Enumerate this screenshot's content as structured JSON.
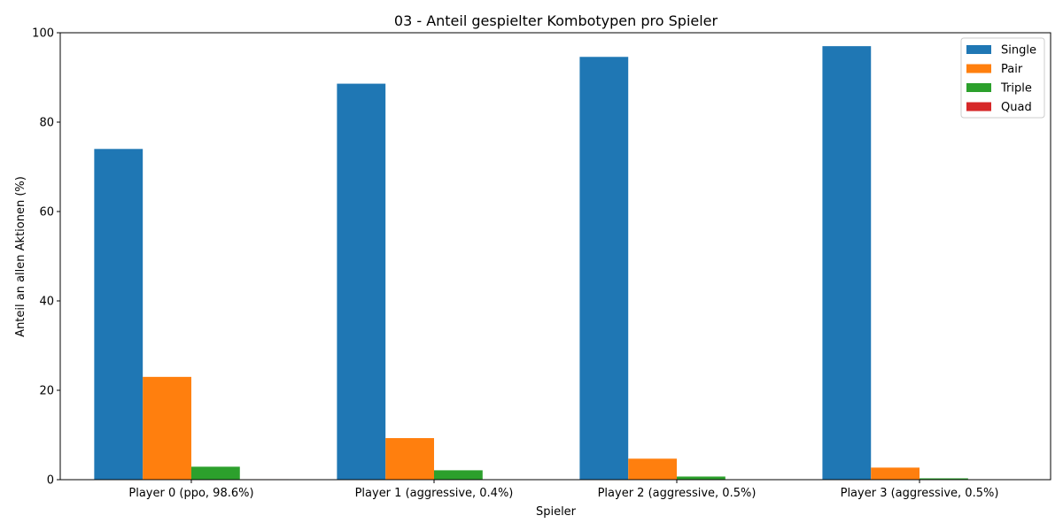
{
  "chart_data": {
    "type": "bar",
    "title": "03 - Anteil gespielter Kombotypen pro Spieler",
    "xlabel": "Spieler",
    "ylabel": "Anteil an allen Aktionen (%)",
    "ylim": [
      0,
      100
    ],
    "yticks": [
      0,
      20,
      40,
      60,
      80,
      100
    ],
    "grid": false,
    "legend_position": "top-right",
    "categories": [
      "Player 0 (ppo, 98.6%)",
      "Player 1 (aggressive, 0.4%)",
      "Player 2 (aggressive, 0.5%)",
      "Player 3 (aggressive, 0.5%)"
    ],
    "series": [
      {
        "name": "Single",
        "color": "#1f77b4",
        "values": [
          74.0,
          88.6,
          94.6,
          97.0
        ]
      },
      {
        "name": "Pair",
        "color": "#ff7f0e",
        "values": [
          23.0,
          9.3,
          4.7,
          2.7
        ]
      },
      {
        "name": "Triple",
        "color": "#2ca02c",
        "values": [
          2.9,
          2.1,
          0.7,
          0.3
        ]
      },
      {
        "name": "Quad",
        "color": "#d62728",
        "values": [
          0.1,
          0.0,
          0.0,
          0.0
        ]
      }
    ]
  }
}
